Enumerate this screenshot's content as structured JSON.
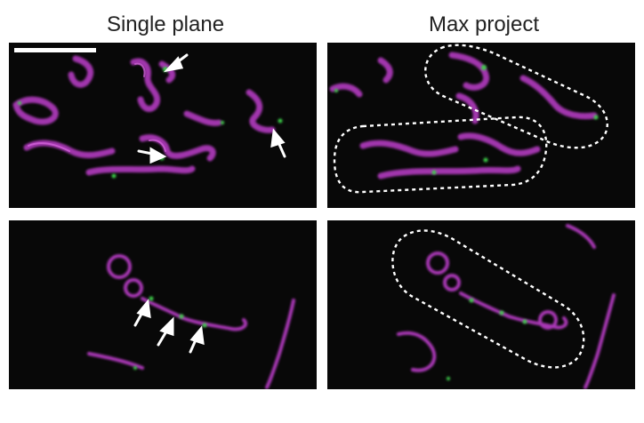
{
  "titles": {
    "left": "Single plane",
    "right": "Max project"
  },
  "colors": {
    "background": "#080808",
    "membrane": "#b23bbf",
    "membrane_bright": "#d96ae0",
    "foci": "#3dcf4a",
    "annotation": "#ffffff"
  },
  "annotations": {
    "arrows_top_left": 3,
    "arrows_bottom_left": 3,
    "outlines_top_right": 2,
    "outlines_bottom_right": 1
  },
  "icons": [
    "arrow-icon",
    "dashed-outline-icon",
    "scale-bar"
  ]
}
